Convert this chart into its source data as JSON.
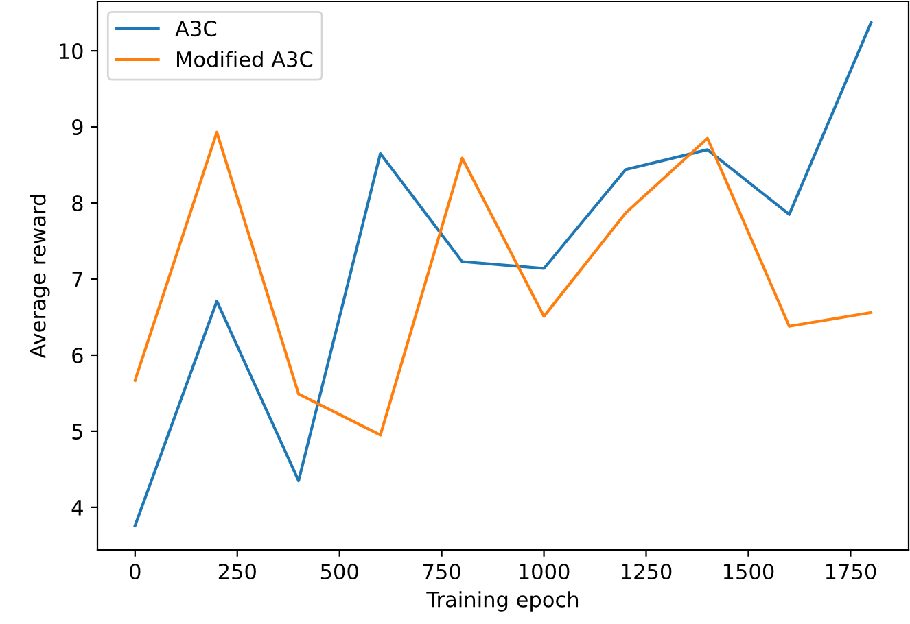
{
  "chart_data": {
    "type": "line",
    "xlabel": "Training epoch",
    "ylabel": "Average reward",
    "x": [
      0,
      200,
      400,
      600,
      800,
      1000,
      1200,
      1400,
      1600,
      1800
    ],
    "series": [
      {
        "name": "A3C",
        "color": "#1f77b4",
        "values": [
          3.76,
          6.71,
          4.35,
          8.65,
          7.23,
          7.14,
          8.44,
          8.7,
          7.85,
          10.37
        ]
      },
      {
        "name": "Modified A3C",
        "color": "#ff7f0e",
        "values": [
          5.67,
          8.93,
          5.49,
          4.95,
          8.59,
          6.51,
          7.87,
          8.85,
          6.38,
          6.56
        ]
      }
    ],
    "xlim": [
      -92,
      1892
    ],
    "ylim": [
      3.44,
      10.65
    ],
    "xticks": [
      0,
      250,
      500,
      750,
      1000,
      1250,
      1500,
      1750
    ],
    "yticks": [
      4,
      5,
      6,
      7,
      8,
      9,
      10
    ],
    "grid": false,
    "legend": "top left",
    "marker": "none",
    "line_style": "solid"
  }
}
